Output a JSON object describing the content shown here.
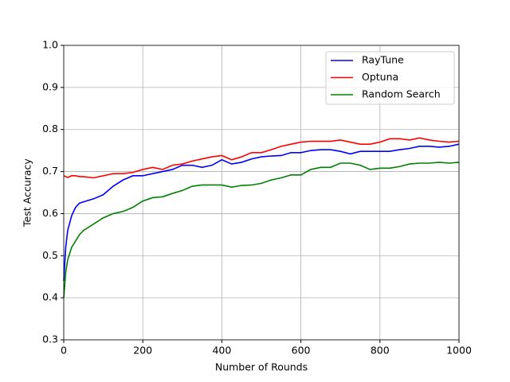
{
  "chart_data": {
    "type": "line",
    "xlabel": "Number of Rounds",
    "ylabel": "Test Accuracy",
    "x": [
      0,
      5,
      10,
      20,
      30,
      40,
      50,
      75,
      100,
      125,
      150,
      175,
      200,
      225,
      250,
      275,
      300,
      325,
      350,
      375,
      400,
      425,
      450,
      475,
      500,
      525,
      550,
      575,
      600,
      625,
      650,
      675,
      700,
      725,
      750,
      775,
      800,
      825,
      850,
      875,
      900,
      925,
      950,
      975,
      1000
    ],
    "series": [
      {
        "name": "RayTune",
        "color": "#0000ff",
        "values": [
          0.44,
          0.52,
          0.56,
          0.595,
          0.615,
          0.625,
          0.628,
          0.635,
          0.645,
          0.665,
          0.68,
          0.69,
          0.69,
          0.695,
          0.7,
          0.705,
          0.715,
          0.715,
          0.71,
          0.715,
          0.728,
          0.718,
          0.722,
          0.73,
          0.735,
          0.737,
          0.738,
          0.745,
          0.745,
          0.75,
          0.752,
          0.752,
          0.748,
          0.742,
          0.748,
          0.748,
          0.748,
          0.748,
          0.752,
          0.755,
          0.76,
          0.76,
          0.758,
          0.76,
          0.765
        ]
      },
      {
        "name": "Optuna",
        "color": "#ff0000",
        "values": [
          0.69,
          0.688,
          0.686,
          0.69,
          0.69,
          0.688,
          0.688,
          0.685,
          0.69,
          0.695,
          0.695,
          0.698,
          0.705,
          0.71,
          0.705,
          0.715,
          0.718,
          0.725,
          0.73,
          0.735,
          0.738,
          0.728,
          0.735,
          0.745,
          0.745,
          0.752,
          0.76,
          0.765,
          0.77,
          0.772,
          0.772,
          0.772,
          0.775,
          0.77,
          0.765,
          0.765,
          0.77,
          0.778,
          0.778,
          0.775,
          0.78,
          0.775,
          0.772,
          0.77,
          0.772
        ]
      },
      {
        "name": "Random Search",
        "color": "#008000",
        "values": [
          0.4,
          0.46,
          0.49,
          0.52,
          0.535,
          0.55,
          0.56,
          0.575,
          0.59,
          0.6,
          0.605,
          0.615,
          0.63,
          0.638,
          0.64,
          0.648,
          0.655,
          0.665,
          0.668,
          0.668,
          0.668,
          0.663,
          0.667,
          0.668,
          0.672,
          0.68,
          0.685,
          0.692,
          0.692,
          0.705,
          0.71,
          0.71,
          0.72,
          0.72,
          0.715,
          0.705,
          0.708,
          0.708,
          0.712,
          0.718,
          0.72,
          0.72,
          0.722,
          0.72,
          0.722
        ]
      }
    ],
    "xlim": [
      0,
      1000
    ],
    "xticks": [
      0,
      200,
      400,
      600,
      800,
      1000
    ],
    "ylim": [
      0.3,
      1
    ],
    "yticks": [
      0.3,
      0.4,
      0.5,
      0.6,
      0.7,
      0.8,
      0.9,
      {
        "value": 1,
        "label": "1.0"
      }
    ],
    "grid": true,
    "legend": "upper right"
  }
}
